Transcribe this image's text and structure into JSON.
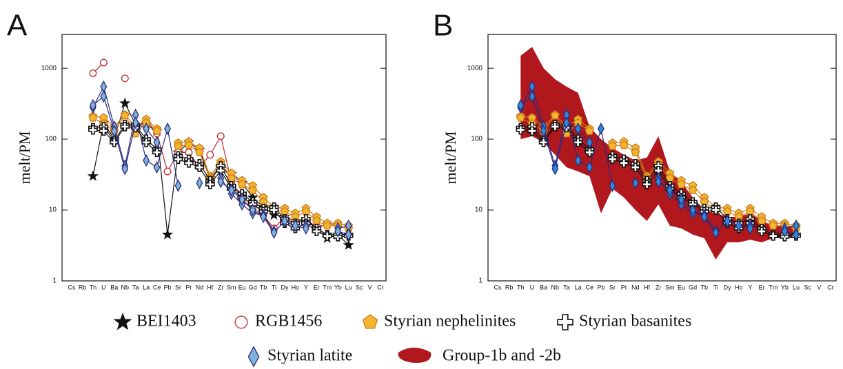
{
  "chart_data": [
    {
      "type": "line",
      "panel_label": "A",
      "ylabel": "melt/PM",
      "log_scale": true,
      "categories": [
        "Cs",
        "Rb",
        "Th",
        "U",
        "Ba",
        "Nb",
        "Ta",
        "La",
        "Ce",
        "Pb",
        "Sr",
        "Pr",
        "Nd",
        "Hf",
        "Zr",
        "Sm",
        "Eu",
        "Gd",
        "Tb",
        "Ti",
        "Dy",
        "Ho",
        "Y",
        "Er",
        "Tm",
        "Yb",
        "Lu",
        "Sc",
        "V",
        "Cr"
      ],
      "ylim": [
        1,
        3000
      ],
      "yticks": [
        1,
        10,
        100,
        1000
      ],
      "series": [
        {
          "name": "BEI1403",
          "marker": "star",
          "color": "#111111",
          "fill": "#111111",
          "values": [
            [
              null,
              null,
              30,
              170,
              100,
              320,
              160,
              160,
              130,
              4.5,
              65,
              90,
              70,
              28,
              40,
              32,
              24,
              15,
              11,
              8.5,
              8,
              7,
              7,
              5.5,
              4,
              4.5,
              3.2,
              null,
              null,
              null
            ]
          ]
        },
        {
          "name": "RGB1456",
          "marker": "circle",
          "color": "#c0272d",
          "fill": "#ffffff",
          "values": [
            [
              null,
              null,
              850,
              1200,
              null,
              720,
              null,
              190,
              120,
              35,
              65,
              65,
              40,
              60,
              110,
              25,
              14,
              10.5,
              8.5,
              5.5,
              8,
              7,
              7,
              6,
              6,
              6.5,
              6,
              null,
              null,
              null
            ]
          ]
        },
        {
          "name": "Styrian nephelinites",
          "marker": "pentagon",
          "color": "#d07a1c",
          "fill": "#f0b630",
          "values": [
            [
              null,
              null,
              210,
              200,
              150,
              220,
              150,
              190,
              140,
              null,
              88,
              92,
              75,
              30,
              48,
              33,
              26,
              22,
              15,
              11,
              10.5,
              9,
              10.5,
              8,
              6.5,
              6.5,
              6,
              null,
              null,
              null
            ],
            [
              null,
              null,
              200,
              165,
              130,
              215,
              120,
              170,
              130,
              null,
              80,
              82,
              65,
              28,
              44,
              28,
              23,
              19,
              13,
              10,
              9.5,
              8,
              9.5,
              7,
              6,
              6,
              5.5,
              null,
              null,
              null
            ]
          ]
        },
        {
          "name": "Styrian basanites",
          "marker": "cross",
          "color": "#111111",
          "fill": "#ffffff",
          "values": [
            [
              null,
              null,
              145,
              150,
              95,
              160,
              155,
              100,
              72,
              null,
              58,
              52,
              45,
              26,
              42,
              22,
              17,
              13,
              10.5,
              11,
              7.5,
              6.5,
              7.5,
              5.5,
              4.5,
              4.5,
              4.5,
              null,
              null,
              null
            ],
            [
              null,
              null,
              135,
              130,
              90,
              150,
              145,
              90,
              65,
              null,
              52,
              46,
              40,
              23,
              36,
              20,
              15,
              12,
              9.5,
              10,
              6.5,
              5.5,
              6.5,
              5,
              4.3,
              4.2,
              4.3,
              null,
              null,
              null
            ]
          ]
        },
        {
          "name": "Styrian latite",
          "marker": "diamond",
          "color": "#2b2b7e",
          "fill": "#7fb2d6",
          "values": [
            [
              null,
              null,
              280,
              550,
              150,
              42,
              220,
              50,
              40,
              140,
              22,
              null,
              24,
              null,
              28,
              17,
              12,
              9,
              8.5,
              5,
              null,
              null,
              6,
              null,
              null,
              5.5,
              6,
              null,
              null,
              null
            ],
            [
              null,
              null,
              300,
              400,
              130,
              38,
              170,
              140,
              90,
              null,
              null,
              null,
              null,
              null,
              25,
              19,
              14,
              10,
              8,
              4.8,
              7,
              6,
              5.5,
              null,
              null,
              5,
              4.5,
              null,
              null,
              null
            ]
          ]
        }
      ]
    },
    {
      "type": "line",
      "panel_label": "B",
      "ylabel": "melt/PM",
      "log_scale": true,
      "categories": [
        "Cs",
        "Rb",
        "Th",
        "U",
        "Ba",
        "Nb",
        "Ta",
        "La",
        "Ce",
        "Pb",
        "Sr",
        "Pr",
        "Nd",
        "Hf",
        "Zr",
        "Sm",
        "Eu",
        "Gd",
        "Tb",
        "Ti",
        "Dy",
        "Ho",
        "Y",
        "Er",
        "Tm",
        "Yb",
        "Lu",
        "Sc",
        "V",
        "Cr"
      ],
      "ylim": [
        1,
        3000
      ],
      "yticks": [
        1,
        10,
        100,
        1000
      ],
      "band": {
        "name": "Group-1b and -2b",
        "color": "#b0181e",
        "upper": [
          null,
          null,
          1500,
          2000,
          1000,
          700,
          550,
          450,
          150,
          100,
          75,
          60,
          50,
          55,
          110,
          35,
          25,
          15,
          10,
          9,
          8,
          8,
          9,
          7,
          6,
          6,
          6,
          null,
          null,
          null
        ],
        "lower": [
          null,
          null,
          100,
          110,
          90,
          60,
          40,
          35,
          30,
          9,
          20,
          15,
          10,
          7,
          12,
          6,
          5.5,
          4.5,
          4,
          2,
          3.5,
          3.5,
          3.8,
          3.5,
          4,
          4,
          4,
          null,
          null,
          null
        ]
      },
      "series": [
        {
          "marker": "pentagon",
          "color": "#d07a1c",
          "fill": "#f0b630",
          "values": [
            [
              null,
              null,
              210,
              200,
              150,
              220,
              150,
              190,
              140,
              null,
              88,
              92,
              75,
              30,
              48,
              33,
              26,
              22,
              15,
              11,
              10.5,
              9,
              10.5,
              8,
              6.5,
              6.5,
              6,
              null,
              null,
              null
            ],
            [
              null,
              null,
              200,
              165,
              130,
              215,
              120,
              170,
              130,
              null,
              80,
              82,
              65,
              28,
              44,
              28,
              23,
              19,
              13,
              10,
              9.5,
              8,
              9.5,
              7,
              6,
              6,
              5.5,
              null,
              null,
              null
            ]
          ]
        },
        {
          "marker": "cross",
          "color": "#111111",
          "fill": "#ffffff",
          "values": [
            [
              null,
              null,
              145,
              150,
              95,
              160,
              155,
              100,
              72,
              null,
              58,
              52,
              45,
              26,
              42,
              22,
              17,
              13,
              10.5,
              11,
              7.5,
              6.5,
              7.5,
              5.5,
              4.5,
              4.5,
              4.5,
              null,
              null,
              null
            ],
            [
              null,
              null,
              135,
              130,
              90,
              150,
              145,
              90,
              65,
              null,
              52,
              46,
              40,
              23,
              36,
              20,
              15,
              12,
              9.5,
              10,
              6.5,
              5.5,
              6.5,
              5,
              4.3,
              4.2,
              4.3,
              null,
              null,
              null
            ]
          ]
        },
        {
          "marker": "diamond",
          "color": "#2b2b7e",
          "fill": "#2a8ad8",
          "values": [
            [
              null,
              null,
              280,
              550,
              150,
              42,
              220,
              50,
              40,
              140,
              22,
              null,
              24,
              null,
              28,
              17,
              12,
              9,
              8.5,
              5,
              null,
              null,
              6,
              null,
              null,
              5.5,
              6,
              null,
              null,
              null
            ],
            [
              null,
              null,
              300,
              400,
              130,
              38,
              170,
              140,
              90,
              null,
              null,
              null,
              null,
              null,
              25,
              19,
              14,
              10,
              8,
              4.8,
              7,
              6,
              5.5,
              null,
              null,
              5,
              4.5,
              null,
              null,
              null
            ]
          ]
        }
      ]
    }
  ]
}
